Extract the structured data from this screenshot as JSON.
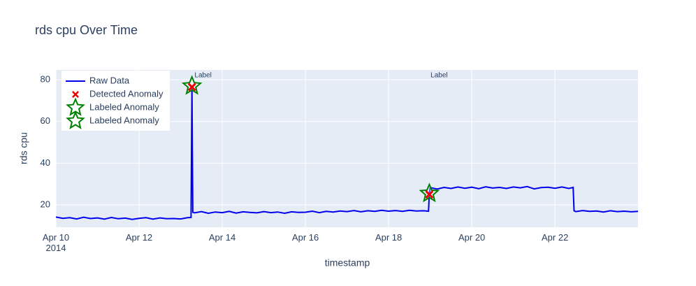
{
  "chart_data": {
    "type": "line",
    "title": "rds cpu Over Time",
    "x_label": "timestamp",
    "y_label": "rds cpu",
    "xlim": [
      "2014-04-10 00:00",
      "2014-04-23 23:55"
    ],
    "ylim": [
      9.3,
      84.7
    ],
    "yticks": [
      20,
      40,
      60,
      80
    ],
    "xticks": [
      {
        "value": "2014-04-10 00:00",
        "label": "Apr 10\n2014"
      },
      {
        "value": "2014-04-12 00:00",
        "label": "Apr 12"
      },
      {
        "value": "2014-04-14 00:00",
        "label": "Apr 14"
      },
      {
        "value": "2014-04-16 00:00",
        "label": "Apr 16"
      },
      {
        "value": "2014-04-18 00:00",
        "label": "Apr 18"
      },
      {
        "value": "2014-04-20 00:00",
        "label": "Apr 20"
      },
      {
        "value": "2014-04-22 00:00",
        "label": "Apr 22"
      }
    ],
    "grid": true,
    "legend": "top-left",
    "annotations": [
      {
        "text": "Label",
        "x": "2014-04-13 06:30"
      },
      {
        "text": "Label",
        "x": "2014-04-18 23:30"
      }
    ],
    "series": [
      {
        "name": "Raw Data",
        "mode": "line",
        "color": "#0000ee",
        "x": [
          "2014-04-10 00:00",
          "2014-04-10 04:00",
          "2014-04-10 08:00",
          "2014-04-10 12:00",
          "2014-04-10 16:00",
          "2014-04-10 20:00",
          "2014-04-11 00:00",
          "2014-04-11 04:00",
          "2014-04-11 08:00",
          "2014-04-11 12:00",
          "2014-04-11 16:00",
          "2014-04-11 20:00",
          "2014-04-12 00:00",
          "2014-04-12 04:00",
          "2014-04-12 08:00",
          "2014-04-12 12:00",
          "2014-04-12 16:00",
          "2014-04-12 20:00",
          "2014-04-13 00:00",
          "2014-04-13 04:00",
          "2014-04-13 06:00",
          "2014-04-13 06:30",
          "2014-04-13 07:00",
          "2014-04-13 08:00",
          "2014-04-13 12:00",
          "2014-04-13 16:00",
          "2014-04-13 20:00",
          "2014-04-14 00:00",
          "2014-04-14 04:00",
          "2014-04-14 08:00",
          "2014-04-14 12:00",
          "2014-04-14 16:00",
          "2014-04-14 20:00",
          "2014-04-15 00:00",
          "2014-04-15 04:00",
          "2014-04-15 08:00",
          "2014-04-15 12:00",
          "2014-04-15 16:00",
          "2014-04-15 20:00",
          "2014-04-16 00:00",
          "2014-04-16 04:00",
          "2014-04-16 08:00",
          "2014-04-16 12:00",
          "2014-04-16 16:00",
          "2014-04-16 20:00",
          "2014-04-17 00:00",
          "2014-04-17 04:00",
          "2014-04-17 08:00",
          "2014-04-17 12:00",
          "2014-04-17 16:00",
          "2014-04-17 20:00",
          "2014-04-18 00:00",
          "2014-04-18 04:00",
          "2014-04-18 08:00",
          "2014-04-18 12:00",
          "2014-04-18 16:00",
          "2014-04-18 20:00",
          "2014-04-18 23:00",
          "2014-04-18 23:30",
          "2014-04-19 00:00",
          "2014-04-19 04:00",
          "2014-04-19 08:00",
          "2014-04-19 12:00",
          "2014-04-19 16:00",
          "2014-04-19 20:00",
          "2014-04-20 00:00",
          "2014-04-20 04:00",
          "2014-04-20 08:00",
          "2014-04-20 12:00",
          "2014-04-20 16:00",
          "2014-04-20 20:00",
          "2014-04-21 00:00",
          "2014-04-21 04:00",
          "2014-04-21 08:00",
          "2014-04-21 12:00",
          "2014-04-21 16:00",
          "2014-04-21 20:00",
          "2014-04-22 00:00",
          "2014-04-22 04:00",
          "2014-04-22 08:00",
          "2014-04-22 10:30",
          "2014-04-22 11:00",
          "2014-04-22 12:00",
          "2014-04-22 16:00",
          "2014-04-22 20:00",
          "2014-04-23 00:00",
          "2014-04-23 04:00",
          "2014-04-23 08:00",
          "2014-04-23 12:00",
          "2014-04-23 16:00",
          "2014-04-23 20:00",
          "2014-04-23 23:55"
        ],
        "values": [
          14.2,
          13.6,
          13.9,
          13.3,
          14.1,
          13.5,
          13.8,
          13.2,
          14.0,
          13.4,
          13.7,
          13.1,
          13.6,
          13.9,
          13.2,
          13.8,
          13.4,
          13.5,
          13.3,
          13.9,
          14.0,
          77.0,
          16.5,
          16.2,
          16.8,
          16.0,
          16.6,
          16.3,
          16.9,
          16.1,
          16.7,
          16.4,
          16.2,
          16.8,
          16.3,
          16.6,
          16.0,
          16.7,
          16.4,
          16.5,
          17.0,
          16.3,
          16.9,
          16.6,
          17.1,
          16.8,
          17.3,
          16.7,
          17.2,
          16.9,
          17.4,
          17.0,
          17.3,
          16.9,
          17.4,
          17.1,
          17.2,
          17.0,
          25.5,
          28.3,
          27.6,
          28.4,
          27.9,
          28.6,
          28.0,
          28.5,
          27.8,
          28.7,
          28.1,
          28.4,
          27.9,
          28.6,
          28.2,
          28.8,
          27.7,
          28.3,
          28.5,
          28.0,
          28.6,
          27.9,
          28.4,
          17.2,
          16.8,
          17.3,
          16.9,
          17.1,
          16.6,
          17.2,
          16.8,
          17.0,
          16.7,
          16.9
        ]
      },
      {
        "name": "Detected Anomaly",
        "mode": "x",
        "color": "#ee0000",
        "x": [
          "2014-04-13 06:30",
          "2014-04-18 23:30"
        ],
        "values": [
          76.5,
          25.0
        ]
      },
      {
        "name": "Labeled Anomaly",
        "mode": "star",
        "color": "#008000",
        "x": [
          "2014-04-13 06:30"
        ],
        "values": [
          77.0
        ]
      },
      {
        "name": "Labeled Anomaly",
        "mode": "star",
        "color": "#008000",
        "x": [
          "2014-04-18 23:30"
        ],
        "values": [
          25.5
        ]
      }
    ]
  }
}
